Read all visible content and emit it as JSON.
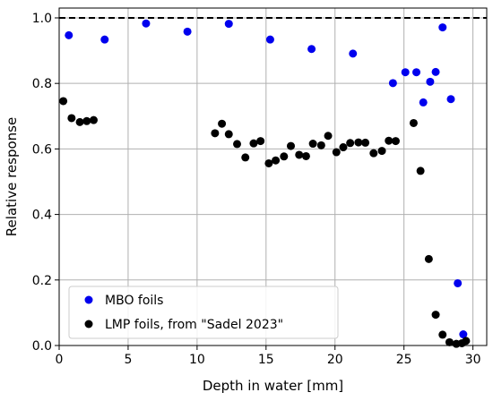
{
  "chart_data": {
    "type": "scatter",
    "xlabel": "Depth in water [mm]",
    "ylabel": "Relative response",
    "xlim": [
      0,
      31
    ],
    "ylim": [
      0,
      1.03
    ],
    "xticks": [
      0,
      5,
      10,
      15,
      20,
      25,
      30
    ],
    "yticks": [
      0.0,
      0.2,
      0.4,
      0.6,
      0.8,
      1.0
    ],
    "xtick_labels": [
      "0",
      "5",
      "10",
      "15",
      "20",
      "25",
      "30"
    ],
    "ytick_labels": [
      "0.0",
      "0.2",
      "0.4",
      "0.6",
      "0.8",
      "1.0"
    ],
    "grid": true,
    "reference_line": {
      "y": 1.0,
      "style": "dashed",
      "color": "#000000"
    },
    "legend_position": "bottom-left",
    "series": [
      {
        "name": "MBO foils",
        "color": "#0000ee",
        "x": [
          0.7,
          3.3,
          6.3,
          9.3,
          12.3,
          15.3,
          18.3,
          21.3,
          24.2,
          25.1,
          25.9,
          26.4,
          26.9,
          27.3,
          27.8,
          28.4,
          28.9,
          29.3
        ],
        "y": [
          0.947,
          0.934,
          0.983,
          0.958,
          0.982,
          0.934,
          0.905,
          0.891,
          0.801,
          0.834,
          0.834,
          0.742,
          0.805,
          0.835,
          0.971,
          0.752,
          0.19,
          0.034
        ]
      },
      {
        "name": "LMP foils, from \"Sadel 2023\"",
        "color": "#000000",
        "x": [
          0.3,
          0.9,
          1.5,
          2.0,
          2.5,
          11.3,
          11.8,
          12.3,
          12.9,
          13.5,
          14.1,
          14.6,
          15.2,
          15.7,
          16.3,
          16.8,
          17.4,
          17.9,
          18.4,
          19.0,
          19.5,
          20.1,
          20.6,
          21.1,
          21.7,
          22.2,
          22.8,
          23.4,
          23.9,
          24.4,
          25.7,
          26.2,
          26.8,
          27.3,
          27.8,
          28.3,
          28.8,
          29.2,
          29.5
        ],
        "y": [
          0.746,
          0.694,
          0.682,
          0.685,
          0.688,
          0.648,
          0.677,
          0.645,
          0.615,
          0.574,
          0.617,
          0.624,
          0.556,
          0.565,
          0.577,
          0.609,
          0.582,
          0.578,
          0.616,
          0.611,
          0.64,
          0.59,
          0.605,
          0.618,
          0.62,
          0.619,
          0.587,
          0.594,
          0.625,
          0.624,
          0.679,
          0.533,
          0.264,
          0.094,
          0.033,
          0.01,
          0.005,
          0.007,
          0.014
        ]
      }
    ]
  }
}
